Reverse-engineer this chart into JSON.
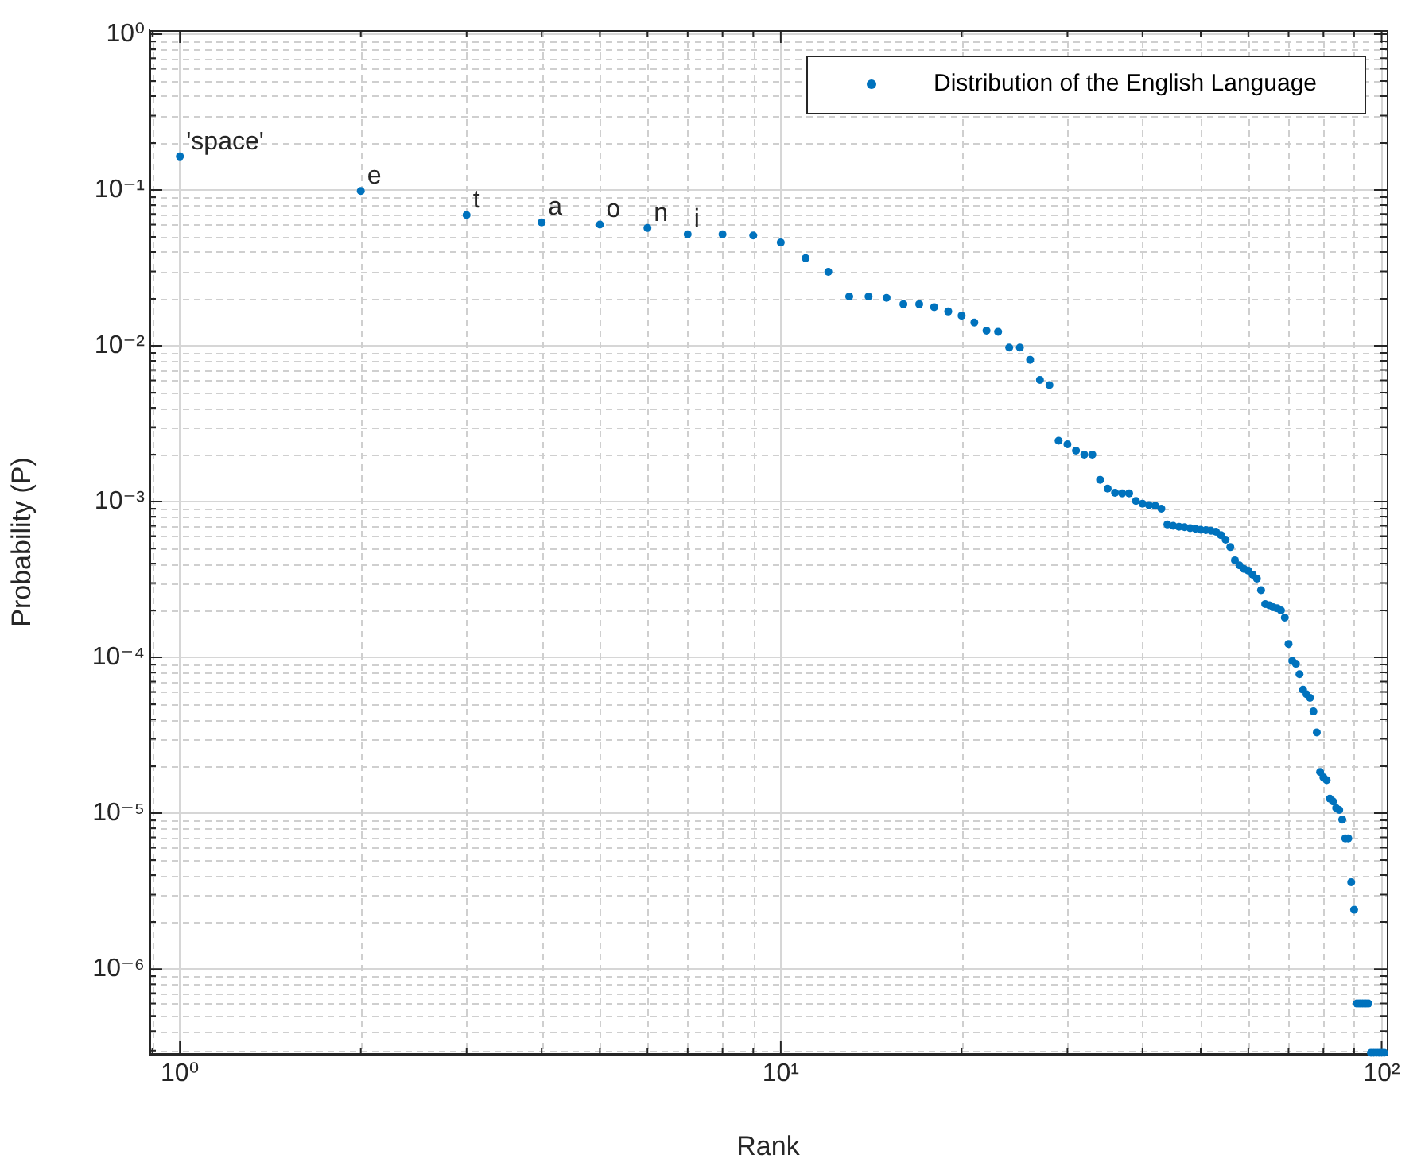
{
  "chart_data": {
    "type": "scatter",
    "xlabel": "Rank",
    "ylabel": "Probability (P)",
    "x": [
      1,
      2,
      3,
      4,
      5,
      6,
      7,
      8,
      9,
      10,
      11,
      12,
      13,
      14,
      15,
      16,
      17,
      18,
      19,
      20,
      21,
      22,
      23,
      24,
      25,
      26,
      27,
      28,
      29,
      30,
      31,
      32,
      33,
      34,
      35,
      36,
      37,
      38,
      39,
      40,
      41,
      42,
      43,
      44,
      45,
      46,
      47,
      48,
      49,
      50,
      51,
      52,
      53,
      54,
      55,
      56,
      57,
      58,
      59,
      60,
      61,
      62,
      63,
      64,
      65,
      66,
      67,
      68,
      69,
      70,
      71,
      72,
      73,
      74,
      75,
      76,
      77,
      78,
      79,
      80,
      81,
      82,
      83,
      84,
      85,
      86,
      87,
      88,
      89,
      90,
      91,
      92,
      93,
      94,
      95,
      96,
      97,
      98,
      99,
      100,
      101
    ],
    "series": [
      {
        "name": "Distribution of the English Language",
        "color": "#0072bd",
        "values": [
          0.164,
          0.0986,
          0.069,
          0.062,
          0.06,
          0.057,
          0.052,
          0.052,
          0.051,
          0.046,
          0.0365,
          0.0298,
          0.0207,
          0.0207,
          0.0203,
          0.0185,
          0.0185,
          0.0177,
          0.0166,
          0.0156,
          0.0141,
          0.0125,
          0.0123,
          0.00975,
          0.00975,
          0.00813,
          0.00604,
          0.00559,
          0.00246,
          0.00233,
          0.00212,
          0.002,
          0.002,
          0.00138,
          0.00121,
          0.00114,
          0.00113,
          0.00113,
          0.00101,
          0.00097,
          0.00095,
          0.00094,
          0.0009,
          0.000713,
          0.0007,
          0.00069,
          0.000685,
          0.000675,
          0.00067,
          0.00066,
          0.000655,
          0.00065,
          0.00064,
          0.00061,
          0.00057,
          0.00051,
          0.00042,
          0.00039,
          0.00037,
          0.00036,
          0.00034,
          0.00032,
          0.00027,
          0.00022,
          0.000216,
          0.00021,
          0.000207,
          0.0002,
          0.00018,
          0.000122,
          9.5e-05,
          9.1e-05,
          7.8e-05,
          6.2e-05,
          5.8e-05,
          5.5e-05,
          4.5e-05,
          3.3e-05,
          1.84e-05,
          1.7e-05,
          1.63e-05,
          1.24e-05,
          1.19e-05,
          1.08e-05,
          1.05e-05,
          9.1e-06,
          6.9e-06,
          6.9e-06,
          3.6e-06,
          2.4e-06,
          6e-07,
          6e-07,
          6e-07,
          6e-07,
          6e-07,
          2.9e-07,
          2.9e-07,
          2.9e-07,
          2.9e-07,
          2.9e-07,
          2.9e-07
        ]
      }
    ],
    "annotations": [
      {
        "text": "'space'",
        "x": 1,
        "y": 0.164
      },
      {
        "text": "e",
        "x": 2,
        "y": 0.0986
      },
      {
        "text": "t",
        "x": 3,
        "y": 0.069
      },
      {
        "text": "a",
        "x": 4,
        "y": 0.062
      },
      {
        "text": "o",
        "x": 5,
        "y": 0.06
      },
      {
        "text": "n",
        "x": 6,
        "y": 0.057
      },
      {
        "text": "i",
        "x": 7,
        "y": 0.052
      }
    ],
    "log": "xy",
    "xlim": [
      0.89,
      102
    ],
    "ylim": [
      2.85e-07,
      1.06
    ],
    "xticks": [
      {
        "value": 1,
        "label": "10⁰"
      },
      {
        "value": 10,
        "label": "10¹"
      },
      {
        "value": 100,
        "label": "10²"
      }
    ],
    "yticks": [
      {
        "value": 1e-06,
        "label": "10⁻⁶"
      },
      {
        "value": 1e-05,
        "label": "10⁻⁵"
      },
      {
        "value": 0.0001,
        "label": "10⁻⁴"
      },
      {
        "value": 0.001,
        "label": "10⁻³"
      },
      {
        "value": 0.01,
        "label": "10⁻²"
      },
      {
        "value": 0.1,
        "label": "10⁻¹"
      },
      {
        "value": 1,
        "label": "10⁰"
      }
    ],
    "grid": true,
    "legend": "top right",
    "marker": "circle"
  }
}
